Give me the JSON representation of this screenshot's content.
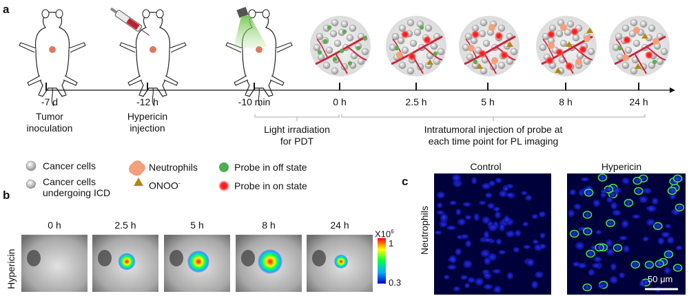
{
  "panel_a": {
    "letter": "a",
    "events": [
      {
        "time": "-7 d",
        "desc1": "Tumor",
        "desc2": "inoculation"
      },
      {
        "time": "-12 h",
        "desc1": "Hypericin",
        "desc2": "injection"
      },
      {
        "time": "-10 min",
        "desc1": "",
        "desc2": ""
      },
      {
        "time": "0 h",
        "desc1": "",
        "desc2": ""
      },
      {
        "time": "2.5 h",
        "desc1": "",
        "desc2": ""
      },
      {
        "time": "5 h",
        "desc1": "",
        "desc2": ""
      },
      {
        "time": "8 h",
        "desc1": "",
        "desc2": ""
      },
      {
        "time": "24 h",
        "desc1": "",
        "desc2": ""
      }
    ],
    "brace_pdt": {
      "line1": "Light irradiation",
      "line2": "for PDT"
    },
    "brace_probe": {
      "line1": "Intratumoral injection of probe at",
      "line2": "each time point for PL imaging"
    }
  },
  "legend": {
    "cancer_cells": "Cancer cells",
    "cancer_icd_1": "Cancer cells",
    "cancer_icd_2": "undergoing ICD",
    "neutrophils": "Neutrophils",
    "onoo": "ONOO",
    "onoo_sup": "-",
    "probe_off": "Probe in off state",
    "probe_on": "Probe in on state",
    "colors": {
      "green": "#4caf50",
      "red": "#ff1a1a",
      "onoo": "#b8860b",
      "neutrophil": "#f4a07a"
    }
  },
  "panel_b": {
    "letter": "b",
    "row_label": "Hypericin",
    "times": [
      "0 h",
      "2.5 h",
      "5 h",
      "8 h",
      "24 h"
    ],
    "signal_levels": [
      0,
      0.55,
      0.85,
      1.0,
      0.35
    ],
    "scale": {
      "exp_base": "X10",
      "exp_sup": "6",
      "max": "1",
      "min": "0.3"
    }
  },
  "panel_c": {
    "letter": "c",
    "row_label": "Neutrophils",
    "col_control": "Control",
    "col_hypericin": "Hypericin",
    "scalebar": "50 μm"
  }
}
